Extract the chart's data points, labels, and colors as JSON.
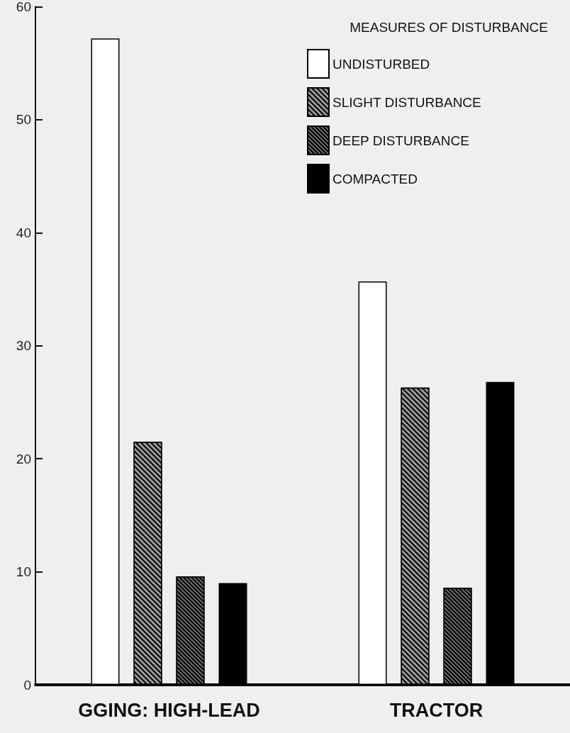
{
  "chart_data": {
    "type": "bar",
    "legend_title": "MEASURES OF DISTURBANCE",
    "categories": [
      "GGING: HIGH-LEAD",
      "TRACTOR"
    ],
    "series": [
      {
        "name": "UNDISTURBED",
        "color": "#ffffff",
        "values": [
          57.2,
          35.7
        ]
      },
      {
        "name": "SLIGHT DISTURBANCE",
        "color": "#9a9a9a",
        "values": [
          21.5,
          26.3
        ]
      },
      {
        "name": "DEEP DISTURBANCE",
        "color": "#6e6e6e",
        "values": [
          9.6,
          8.6
        ]
      },
      {
        "name": "COMPACTED",
        "color": "#000000",
        "values": [
          9.0,
          26.8
        ]
      }
    ],
    "ylim": [
      0,
      60
    ],
    "yticks": [
      0,
      10,
      20,
      30,
      40,
      50,
      60
    ],
    "grid": false,
    "legend": "top right"
  }
}
